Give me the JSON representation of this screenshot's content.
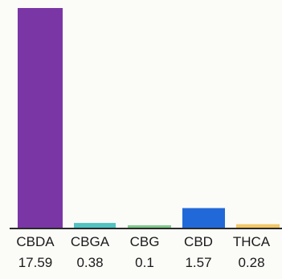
{
  "chart_data": {
    "type": "bar",
    "categories": [
      "CBDA",
      "CBGA",
      "CBG",
      "CBD",
      "THCA"
    ],
    "values": [
      17.59,
      0.38,
      0.1,
      1.57,
      0.28
    ],
    "value_labels": [
      "17.59",
      "0.38",
      "0.1",
      "1.57",
      "0.28"
    ],
    "colors": [
      "#7b36a6",
      "#52c2c2",
      "#7ec98a",
      "#2169d8",
      "#f1c766"
    ],
    "title": "",
    "xlabel": "",
    "ylabel": "",
    "ylim": [
      0,
      17.59
    ],
    "grid": false,
    "legend": "none"
  }
}
